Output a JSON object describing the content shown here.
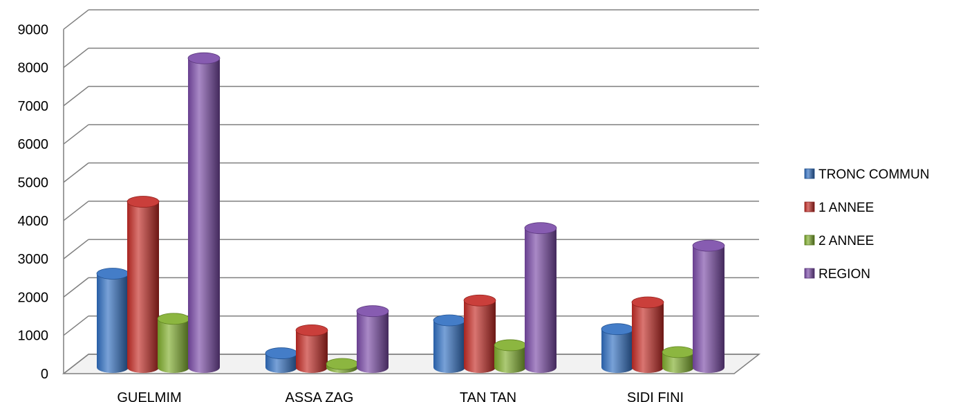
{
  "chart_data": {
    "type": "bar",
    "categories": [
      "GUELMIM",
      "ASSA ZAG",
      "TAN TAN",
      "SIDI FINI"
    ],
    "series": [
      {
        "name": "TRONC COMMUN",
        "values": [
          2450,
          370,
          1230,
          1000
        ],
        "color": "#2f6fc2"
      },
      {
        "name": "1 ANNEE",
        "values": [
          4330,
          970,
          1750,
          1700
        ],
        "color": "#c42a25"
      },
      {
        "name": "2 ANNEE",
        "values": [
          1270,
          90,
          580,
          400
        ],
        "color": "#7fae2b"
      },
      {
        "name": "REGION",
        "values": [
          8080,
          1470,
          3640,
          3180
        ],
        "color": "#7a4aa8"
      }
    ],
    "yticks": [
      "0",
      "1000",
      "2000",
      "3000",
      "4000",
      "5000",
      "6000",
      "7000",
      "8000",
      "9000"
    ],
    "ylim": [
      0,
      9000
    ],
    "grid": true,
    "legend_position": "right",
    "style": "3d-cylinder"
  }
}
